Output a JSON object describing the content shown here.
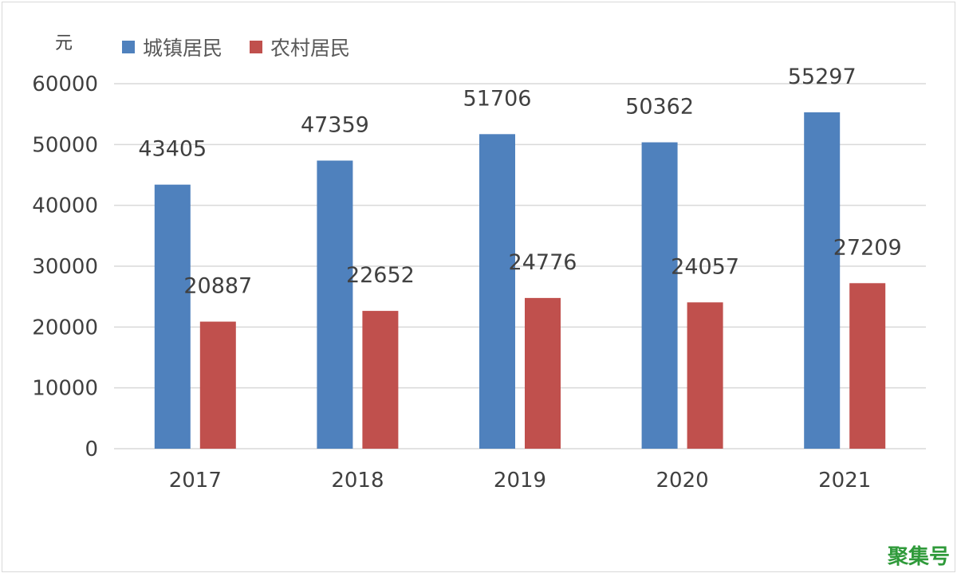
{
  "chart_data": {
    "type": "bar",
    "unit": "元",
    "categories": [
      "2017",
      "2018",
      "2019",
      "2020",
      "2021"
    ],
    "series": [
      {
        "name": "城镇居民",
        "color": "#4f81bd",
        "values": [
          43405,
          47359,
          51706,
          50362,
          55297
        ]
      },
      {
        "name": "农村居民",
        "color": "#c0504d",
        "values": [
          20887,
          22652,
          24776,
          24057,
          27209
        ]
      }
    ],
    "ylim": [
      0,
      60000
    ],
    "yticks": [
      0,
      10000,
      20000,
      30000,
      40000,
      50000,
      60000
    ],
    "grid": true,
    "legend": "top-left",
    "data_labels": true
  },
  "watermark": "聚集号"
}
